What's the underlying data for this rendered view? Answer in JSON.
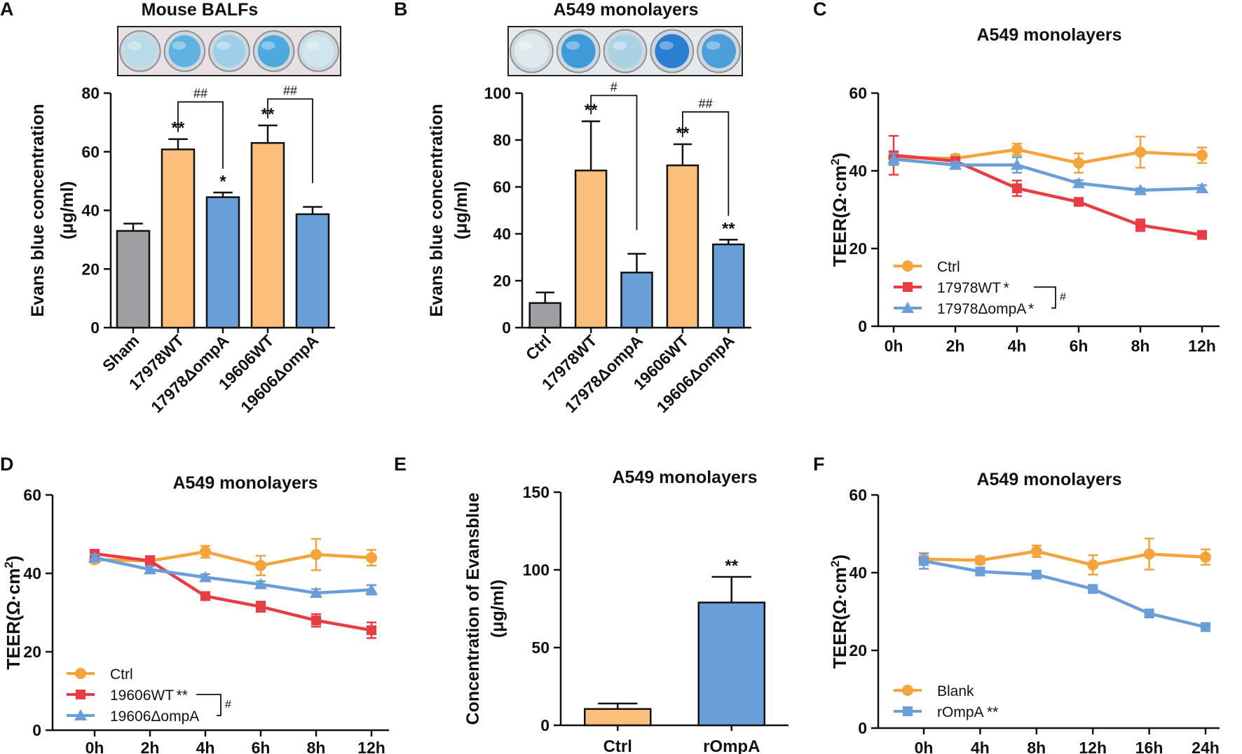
{
  "figure": {
    "colors": {
      "gray": "#9e9fa3",
      "orange": "#fbbf7b",
      "blue": "#6a9ed8",
      "line_orange": "#f5a33b",
      "line_red": "#ea3c43",
      "line_blue": "#6a9ed8"
    },
    "panels": [
      {
        "letter": "A",
        "title": "Mouse BALFs",
        "photo": {
          "name": "well-plate-photo-mouse-balfs",
          "wells": [
            "#b9dbe9",
            "#5fb2df",
            "#9dd0e8",
            "#4ea9df",
            "#cfe5ef"
          ],
          "bg": "#e8e0e2"
        },
        "chart_data": {
          "type": "bar",
          "title": "Mouse BALFs",
          "ylabel_lines": [
            "Evans blue concentration",
            "(μg/ml)"
          ],
          "ylim": [
            0,
            80
          ],
          "yticks": [
            0,
            20,
            40,
            60,
            80
          ],
          "categories": [
            "Sham",
            "17978WT",
            "17978ΔompA",
            "19606WT",
            "19606ΔompA"
          ],
          "values": [
            33,
            60.8,
            44.5,
            63,
            38.7
          ],
          "errors": [
            2.5,
            3.5,
            1.6,
            6,
            2.5
          ],
          "colors": [
            "gray",
            "orange",
            "blue",
            "orange",
            "blue"
          ],
          "stars": [
            "",
            "**",
            "*",
            "**",
            ""
          ],
          "brackets": [
            {
              "from": 1,
              "to": 2,
              "label": "##",
              "level": 77
            },
            {
              "from": 3,
              "to": 4,
              "label": "##",
              "level": 78
            }
          ]
        }
      },
      {
        "letter": "B",
        "title": "A549 monolayers",
        "photo": {
          "name": "well-plate-photo-a549",
          "wells": [
            "#dde9ec",
            "#3d9bd8",
            "#a9d3e2",
            "#2a7fd1",
            "#4d9fd9"
          ],
          "bg": "#e6e9ec"
        },
        "chart_data": {
          "type": "bar",
          "title": "A549 monolayers",
          "ylabel_lines": [
            "Evans blue concentration",
            "(μg/ml)"
          ],
          "ylim": [
            0,
            100
          ],
          "yticks": [
            0,
            20,
            40,
            60,
            80,
            100
          ],
          "categories": [
            "Ctrl",
            "17978WT",
            "17978ΔompA",
            "19606WT",
            "19606ΔompA"
          ],
          "values": [
            10.5,
            67,
            23.5,
            69.2,
            35.5
          ],
          "errors": [
            4.5,
            21,
            8,
            9,
            2
          ],
          "colors": [
            "gray",
            "orange",
            "blue",
            "orange",
            "blue"
          ],
          "stars": [
            "",
            "**",
            "",
            "**",
            "**"
          ],
          "brackets": [
            {
              "from": 1,
              "to": 2,
              "label": "#",
              "level": 99
            },
            {
              "from": 3,
              "to": 4,
              "label": "##",
              "level": 92
            }
          ]
        }
      },
      {
        "letter": "C",
        "title": "A549 monolayers",
        "chart_data": {
          "type": "line",
          "title": "A549 monolayers",
          "ylabel": "TEER(Ω·cm",
          "ylabel_sup": "2",
          "ylabel_end": ")",
          "ylim": [
            0,
            60
          ],
          "yticks": [
            0,
            20,
            40,
            60
          ],
          "x": [
            "0h",
            "2h",
            "4h",
            "6h",
            "8h",
            "12h"
          ],
          "series": [
            {
              "name": "Ctrl",
              "sig": "",
              "color": "line_orange",
              "marker": "circle",
              "values": [
                43.5,
                43.2,
                45.5,
                42,
                44.8,
                44
              ],
              "errors": [
                0.8,
                1,
                1.5,
                2.5,
                4,
                2
              ]
            },
            {
              "name": "17978WT",
              "sig": "*",
              "color": "line_red",
              "marker": "square",
              "values": [
                44,
                42.5,
                35.5,
                32,
                26,
                23.5
              ],
              "errors": [
                5,
                0.8,
                2,
                0.8,
                1.5,
                0.8
              ]
            },
            {
              "name": "17978ΔompA",
              "sig": "*",
              "color": "line_blue",
              "marker": "triangle",
              "values": [
                43,
                41.5,
                41.5,
                36.8,
                35,
                35.5
              ],
              "errors": [
                1.5,
                0.8,
                2,
                0.8,
                0.5,
                0.8
              ]
            }
          ],
          "legend_bracket": "#",
          "legend_position": "bottom-left"
        }
      },
      {
        "letter": "D",
        "title": "A549 monolayers",
        "chart_data": {
          "type": "line",
          "title": "A549 monolayers",
          "ylabel": "TEER(Ω·cm",
          "ylabel_sup": "2",
          "ylabel_end": ")",
          "ylim": [
            0,
            60
          ],
          "yticks": [
            0,
            20,
            40,
            60
          ],
          "x": [
            "0h",
            "2h",
            "4h",
            "6h",
            "8h",
            "12h"
          ],
          "series": [
            {
              "name": "Ctrl",
              "sig": "",
              "color": "line_orange",
              "marker": "circle",
              "values": [
                43.5,
                43.2,
                45.5,
                42,
                44.8,
                44
              ],
              "errors": [
                0.8,
                1,
                1.5,
                2.5,
                4,
                2
              ]
            },
            {
              "name": "19606WT",
              "sig": "**",
              "color": "line_red",
              "marker": "square",
              "values": [
                45,
                43.2,
                34.2,
                31.5,
                28,
                25.5
              ],
              "errors": [
                0.8,
                1.2,
                0.8,
                1.3,
                1.6,
                2
              ]
            },
            {
              "name": "19606ΔompA",
              "sig": "",
              "color": "line_blue",
              "marker": "triangle",
              "values": [
                44,
                41,
                39,
                37.2,
                35,
                35.8
              ],
              "errors": [
                0.8,
                0.8,
                0.8,
                0.8,
                1,
                1.2
              ]
            }
          ],
          "legend_bracket": "#",
          "legend_position": "bottom-left"
        }
      },
      {
        "letter": "E",
        "title": "A549 monolayers",
        "chart_data": {
          "type": "bar",
          "title": "A549 monolayers",
          "ylabel_lines": [
            "Concentration of Evansblue",
            "(μg/ml)"
          ],
          "ylim": [
            0,
            150
          ],
          "yticks": [
            0,
            50,
            100,
            150
          ],
          "categories": [
            "Ctrl",
            "rOmpA"
          ],
          "values": [
            10.5,
            79
          ],
          "errors": [
            3.5,
            16.5
          ],
          "colors": [
            "orange",
            "blue"
          ],
          "stars": [
            "",
            "**"
          ]
        }
      },
      {
        "letter": "F",
        "title": "A549 monolayers",
        "chart_data": {
          "type": "line",
          "title": "A549 monolayers",
          "ylabel": "TEER(Ω·cm",
          "ylabel_sup": "2",
          "ylabel_end": ")",
          "ylim": [
            0,
            60
          ],
          "yticks": [
            0,
            20,
            40,
            60
          ],
          "x": [
            "0h",
            "4h",
            "8h",
            "12h",
            "16h",
            "24h"
          ],
          "series": [
            {
              "name": "Blank",
              "sig": "",
              "color": "line_orange",
              "marker": "circle",
              "values": [
                43.5,
                43.2,
                45.5,
                42,
                44.8,
                44
              ],
              "errors": [
                0.8,
                1,
                1.5,
                2.5,
                4,
                2
              ]
            },
            {
              "name": "rOmpA",
              "sig": "**",
              "color": "line_blue",
              "marker": "square",
              "values": [
                43,
                40.3,
                39.5,
                35.8,
                29.5,
                26
              ],
              "errors": [
                2,
                0.8,
                0.8,
                0.8,
                0.8,
                0.8
              ]
            }
          ],
          "legend_bracket": "",
          "legend_position": "bottom-left"
        }
      }
    ]
  }
}
